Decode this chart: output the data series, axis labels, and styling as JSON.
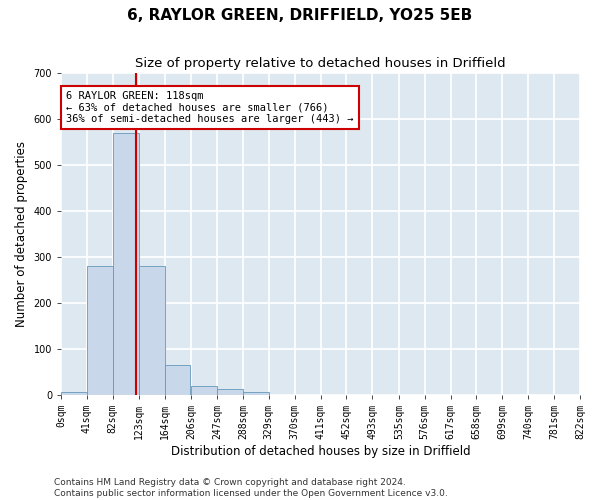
{
  "title": "6, RAYLOR GREEN, DRIFFIELD, YO25 5EB",
  "subtitle": "Size of property relative to detached houses in Driffield",
  "xlabel": "Distribution of detached houses by size in Driffield",
  "ylabel": "Number of detached properties",
  "footer_line1": "Contains HM Land Registry data © Crown copyright and database right 2024.",
  "footer_line2": "Contains public sector information licensed under the Open Government Licence v3.0.",
  "annotation_line1": "6 RAYLOR GREEN: 118sqm",
  "annotation_line2": "← 63% of detached houses are smaller (766)",
  "annotation_line3": "36% of semi-detached houses are larger (443) →",
  "bin_edges": [
    0,
    41,
    82,
    123,
    164,
    206,
    247,
    288,
    329,
    370,
    411,
    452,
    493,
    535,
    576,
    617,
    658,
    699,
    740,
    781,
    822
  ],
  "bar_heights": [
    5,
    280,
    570,
    280,
    65,
    18,
    12,
    5,
    0,
    0,
    0,
    0,
    0,
    0,
    0,
    0,
    0,
    0,
    0,
    0
  ],
  "bar_color": "#c8d8ea",
  "bar_edge_color": "#6699bb",
  "property_line_x": 118,
  "property_line_color": "#cc0000",
  "ylim": [
    0,
    700
  ],
  "yticks": [
    0,
    100,
    200,
    300,
    400,
    500,
    600,
    700
  ],
  "background_color": "#dde8f0",
  "grid_color": "#ffffff",
  "fig_background": "#ffffff",
  "annotation_box_color": "#cc0000",
  "title_fontsize": 11,
  "subtitle_fontsize": 9.5,
  "axis_label_fontsize": 8.5,
  "tick_fontsize": 7,
  "footer_fontsize": 6.5
}
